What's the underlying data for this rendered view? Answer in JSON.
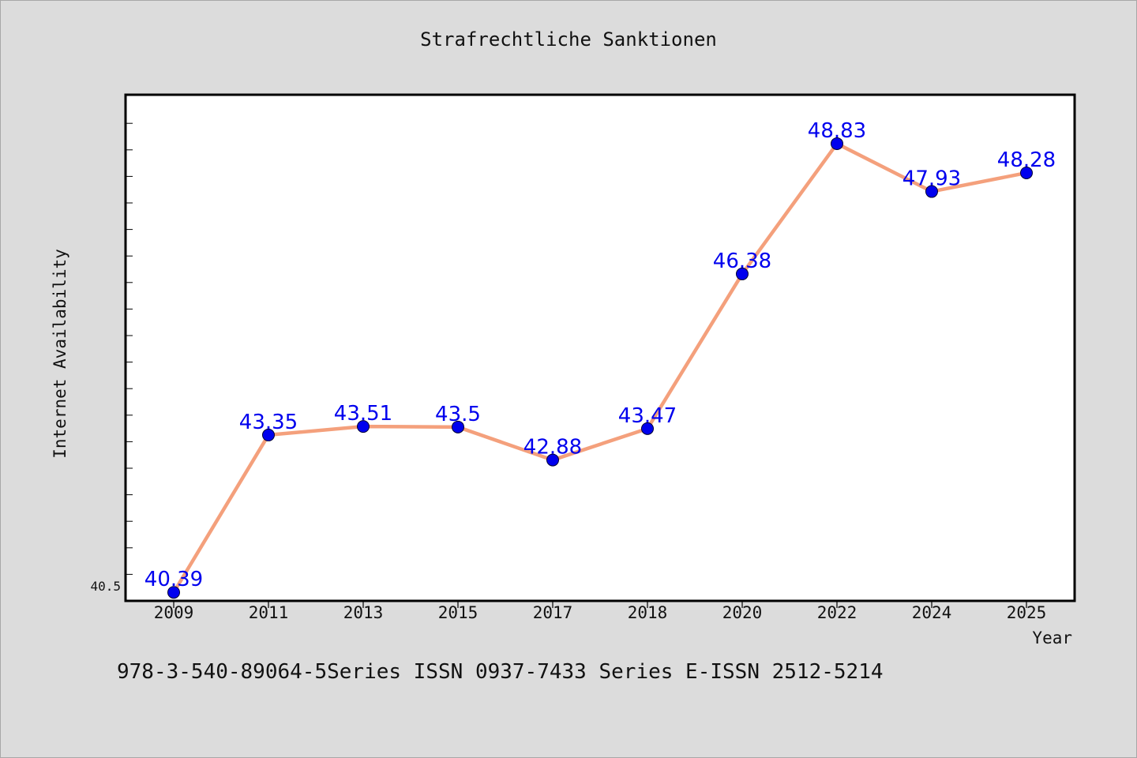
{
  "chart_data": {
    "type": "line",
    "title": "Strafrechtliche Sanktionen",
    "xlabel": "Year",
    "ylabel": "Internet Availability",
    "categories": [
      "2009",
      "2011",
      "2013",
      "2015",
      "2017",
      "2018",
      "2020",
      "2022",
      "2024",
      "2025"
    ],
    "series": [
      {
        "values": [
          40.39,
          43.35,
          43.51,
          43.5,
          42.88,
          43.47,
          46.38,
          48.83,
          47.93,
          48.28
        ],
        "labels": [
          "40.39",
          "43.35",
          "43.51",
          "43.5",
          "42.88",
          "43.47",
          "46.38",
          "48.83",
          "47.93",
          "48.28"
        ],
        "line_color": "#f4a07c",
        "marker_color": "#0000ee"
      }
    ],
    "yticks": [
      "40.5"
    ],
    "ylim": [
      40.23,
      49.75
    ],
    "grid": false,
    "legend": "none",
    "data_label_color": "#0000ee"
  },
  "footer_text": "978-3-540-89064-5Series ISSN 0937-7433 Series E-ISSN 2512-5214"
}
